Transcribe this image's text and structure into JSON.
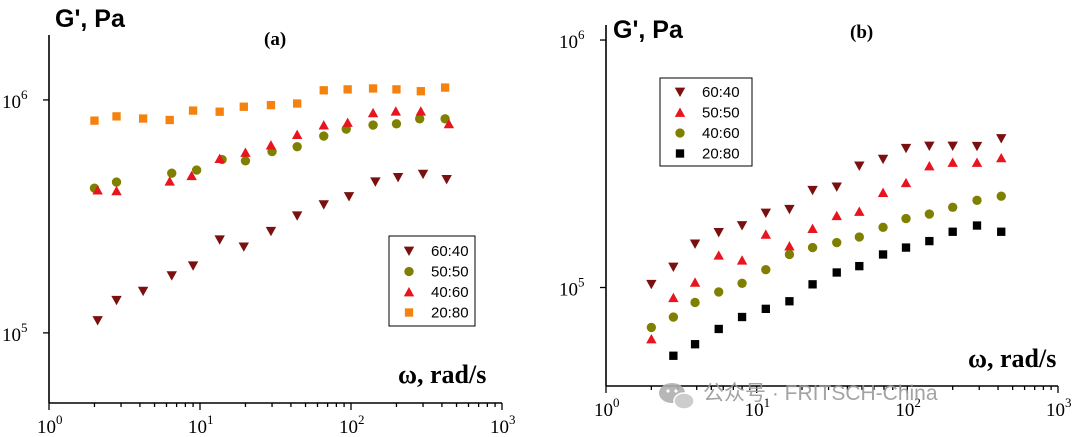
{
  "watermark": "公众号 · FRITSCH-China",
  "chart_data": [
    {
      "type": "scatter",
      "panel": "(a)",
      "ylabel": "G', Pa",
      "xlabel": "ω, rad/s",
      "xscale": "log",
      "yscale": "log",
      "xlim": [
        1,
        1000
      ],
      "ylim": [
        50000,
        1900000
      ],
      "x_ticks": [
        1,
        10,
        100,
        1000
      ],
      "y_ticks": [
        100000,
        1000000
      ],
      "legend_position": "lower-right",
      "series": [
        {
          "name": "60:40",
          "marker": "triangle-down",
          "color": "#7a1010",
          "x": [
            2.1,
            2.8,
            4.2,
            6.5,
            9.0,
            13.5,
            19.5,
            29.5,
            44,
            66,
            97,
            145,
            205,
            300,
            430
          ],
          "y": [
            113000,
            138000,
            151000,
            176000,
            194000,
            251000,
            234000,
            273000,
            318000,
            355000,
            385000,
            445000,
            465000,
            480000,
            456000
          ]
        },
        {
          "name": "50:50",
          "marker": "circle",
          "color": "#808000",
          "x": [
            2.0,
            2.8,
            6.5,
            9.5,
            14,
            20,
            30,
            44,
            66,
            93,
            140,
            200,
            285,
            420
          ],
          "y": [
            418000,
            444000,
            485000,
            500000,
            555000,
            548000,
            600000,
            630000,
            700000,
            750000,
            780000,
            790000,
            830000,
            830000
          ]
        },
        {
          "name": "40:60",
          "marker": "triangle-up",
          "color": "#e8141e",
          "x": [
            2.1,
            2.8,
            6.3,
            8.8,
            13.5,
            20,
            29.5,
            44,
            66,
            95,
            140,
            198,
            290,
            445
          ],
          "y": [
            410000,
            407000,
            448000,
            473000,
            560000,
            595000,
            640000,
            710000,
            780000,
            800000,
            880000,
            895000,
            895000,
            790000
          ]
        },
        {
          "name": "20:80",
          "marker": "square",
          "color": "#f5820f",
          "x": [
            2.0,
            2.8,
            4.2,
            6.3,
            9.0,
            13.5,
            19.5,
            29.5,
            44,
            66,
            95,
            140,
            200,
            290,
            420
          ],
          "y": [
            815000,
            850000,
            832000,
            820000,
            900000,
            890000,
            935000,
            950000,
            965000,
            1100000,
            1110000,
            1120000,
            1110000,
            1090000,
            1130000
          ]
        }
      ]
    },
    {
      "type": "scatter",
      "panel": "(b)",
      "ylabel": "G', Pa",
      "xlabel": "ω, rad/s",
      "xscale": "log",
      "yscale": "log",
      "xlim": [
        1,
        1000
      ],
      "ylim": [
        40000,
        1150000
      ],
      "x_ticks": [
        1,
        10,
        100,
        1000
      ],
      "y_ticks": [
        100000,
        1000000
      ],
      "legend_position": "top-left",
      "series": [
        {
          "name": "60:40",
          "marker": "triangle-down",
          "color": "#7a1010",
          "x": [
            2.0,
            2.8,
            3.9,
            5.6,
            8.0,
            11.5,
            16.5,
            23.5,
            34,
            48,
            69,
            98,
            140,
            200,
            290,
            420
          ],
          "y": [
            103000,
            121000,
            150000,
            167000,
            178000,
            200000,
            207000,
            247000,
            255000,
            310000,
            330000,
            365000,
            373000,
            373000,
            372000,
            400000
          ]
        },
        {
          "name": "50:50",
          "marker": "triangle-up",
          "color": "#e8141e",
          "x": [
            2.0,
            2.8,
            3.9,
            5.6,
            8.0,
            11.5,
            16.5,
            23.5,
            34,
            48,
            69,
            98,
            140,
            200,
            290,
            420
          ],
          "y": [
            62000,
            91000,
            105000,
            135000,
            129000,
            164000,
            147000,
            173000,
            195000,
            203000,
            242000,
            265000,
            310000,
            320000,
            320000,
            334000
          ]
        },
        {
          "name": "40:60",
          "marker": "circle",
          "color": "#808000",
          "x": [
            2.0,
            2.8,
            3.9,
            5.6,
            8.0,
            11.5,
            16.5,
            23.5,
            34,
            48,
            69,
            98,
            140,
            200,
            290,
            420
          ],
          "y": [
            69000,
            76000,
            87000,
            96000,
            104000,
            118000,
            136000,
            145000,
            152000,
            160000,
            175000,
            190000,
            198000,
            211000,
            225000,
            234000
          ]
        },
        {
          "name": "20:80",
          "marker": "square",
          "color": "#000000",
          "x": [
            2.8,
            3.9,
            5.6,
            8.0,
            11.5,
            16.5,
            23.5,
            34,
            48,
            69,
            98,
            140,
            200,
            290,
            420
          ],
          "y": [
            53000,
            59000,
            68000,
            76000,
            82000,
            88000,
            103000,
            115000,
            122000,
            136000,
            145000,
            154000,
            168000,
            178000,
            168000
          ]
        }
      ]
    }
  ]
}
